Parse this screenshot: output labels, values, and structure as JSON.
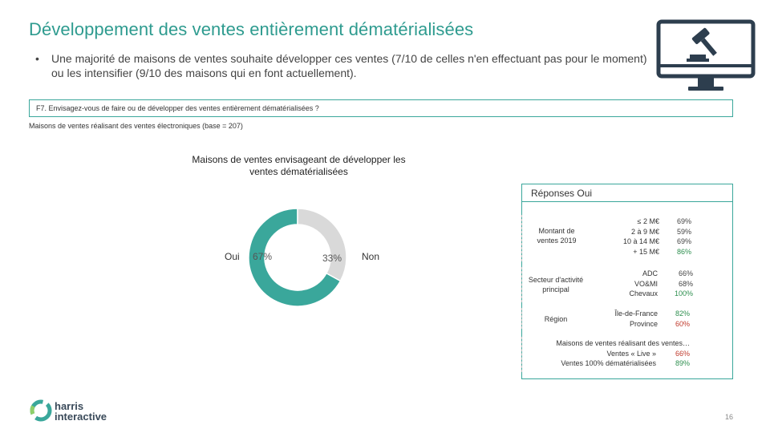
{
  "header": {
    "title": "Développement des ventes entièrement dématérialisées",
    "bullet": "Une majorité de maisons de ventes souhaite développer ces ventes (7/10 de celles n'en effectuant pas pour le moment) ou les intensifier (9/10 des maisons qui en font actuellement)."
  },
  "question": {
    "text": "F7. Envisagez-vous de faire ou de développer des ventes entièrement dématérialisées ?",
    "base": "Maisons de ventes réalisant des ventes électroniques (base = 207)"
  },
  "chart_data": {
    "type": "pie",
    "title": "Maisons de ventes envisageant de développer les ventes dématérialisées",
    "categories": [
      "Oui",
      "Non"
    ],
    "values": [
      67,
      33
    ],
    "value_labels": [
      "67%",
      "33%"
    ],
    "colors": [
      "#3aa79b",
      "#d9d9d9"
    ]
  },
  "panel": {
    "title": "Réponses Oui",
    "groups": [
      {
        "label": "Montant de ventes 2019",
        "rows": [
          {
            "segment": "≤ 2 M€",
            "value": "69%",
            "tone": "gray"
          },
          {
            "segment": "2 à 9 M€",
            "value": "59%",
            "tone": "gray"
          },
          {
            "segment": "10 à 14 M€",
            "value": "69%",
            "tone": "gray"
          },
          {
            "segment": "+ 15 M€",
            "value": "86%",
            "tone": "green"
          }
        ]
      },
      {
        "label": "Secteur d'activité principal",
        "rows": [
          {
            "segment": "ADC",
            "value": "66%",
            "tone": "gray"
          },
          {
            "segment": "VO&MI",
            "value": "68%",
            "tone": "gray"
          },
          {
            "segment": "Chevaux",
            "value": "100%",
            "tone": "green"
          }
        ]
      },
      {
        "label": "Région",
        "rows": [
          {
            "segment": "Île-de-France",
            "value": "82%",
            "tone": "green"
          },
          {
            "segment": "Province",
            "value": "60%",
            "tone": "red"
          }
        ]
      }
    ],
    "footer": {
      "heading": "Maisons de ventes réalisant des ventes…",
      "rows": [
        {
          "segment": "Ventes « Live »",
          "value": "66%",
          "tone": "red"
        },
        {
          "segment": "Ventes 100% dématérialisées",
          "value": "89%",
          "tone": "green"
        }
      ]
    }
  },
  "brand": {
    "logo_line1": "harris",
    "logo_line2": "interactive",
    "page_number": "16"
  },
  "colors": {
    "accent": "#3aa79b",
    "title": "#2e9b8f",
    "positive": "#2e8f4f",
    "negative": "#c0392b",
    "icon": "#2d3e4e"
  },
  "icons": [
    "monitor-gavel-icon",
    "harris-interactive-logo-icon"
  ]
}
